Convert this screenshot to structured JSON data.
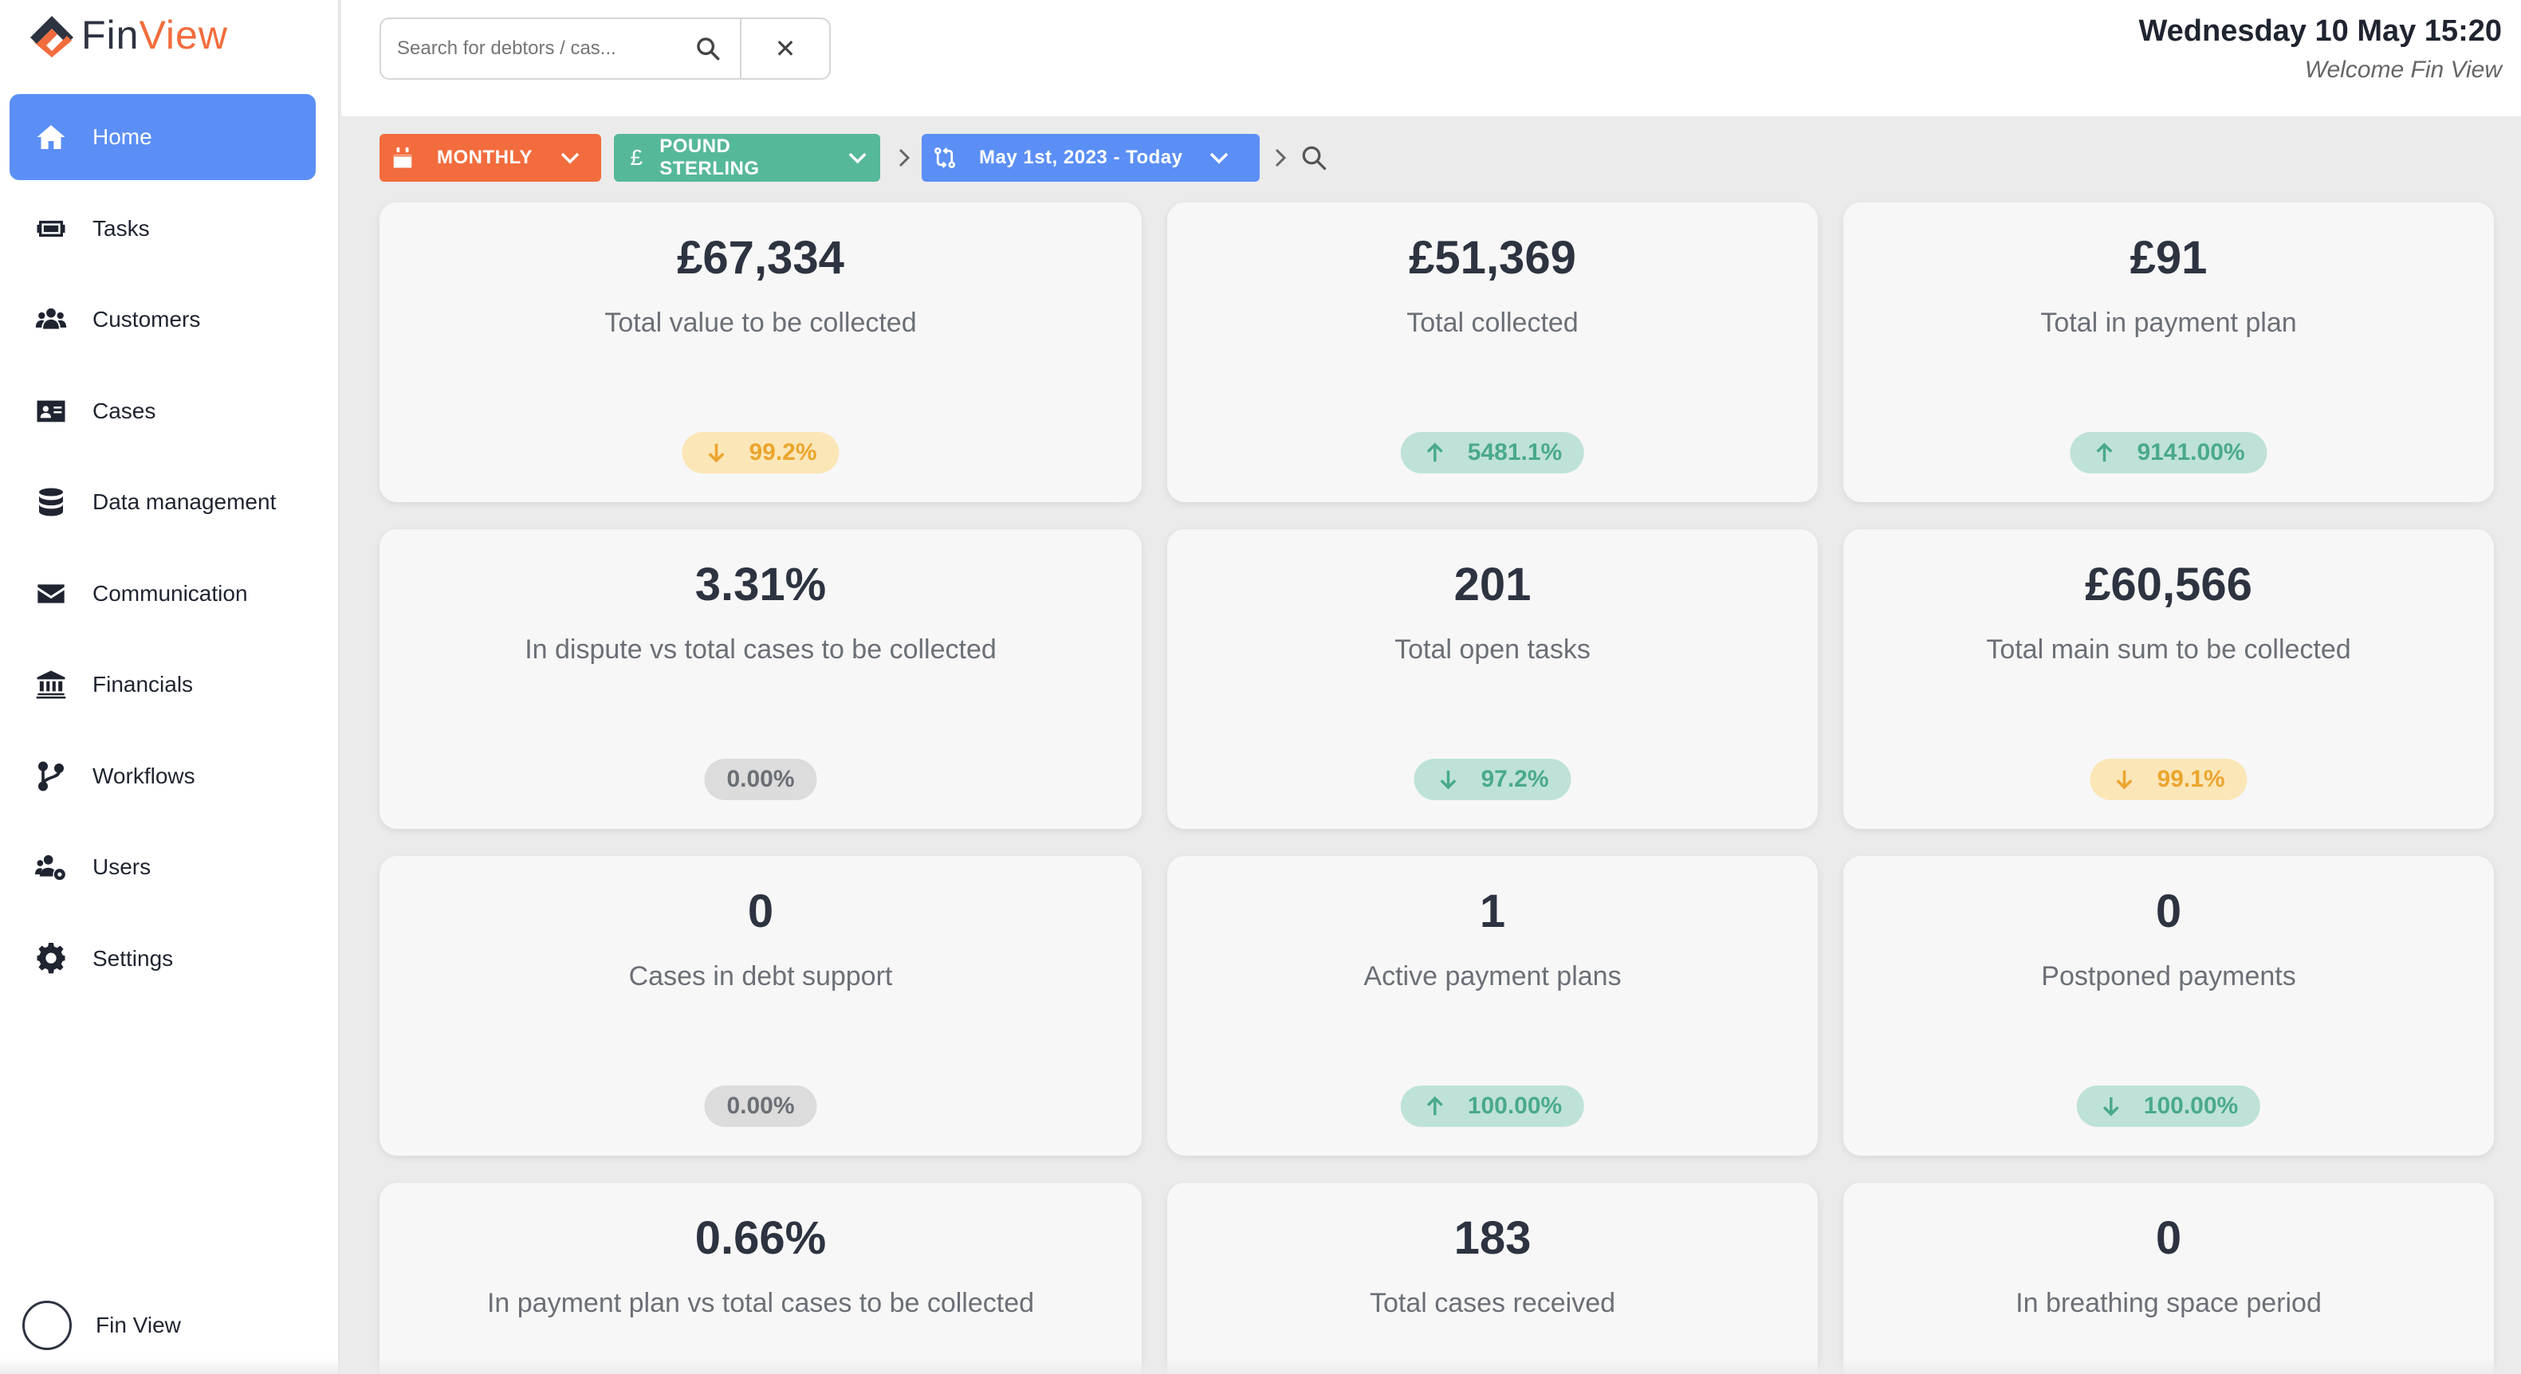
{
  "brand": {
    "name_part1": "Fin",
    "name_part2": "View",
    "accent": "#f26c3d"
  },
  "sidebar": {
    "items": [
      {
        "label": "Home",
        "icon": "home-icon",
        "active": true
      },
      {
        "label": "Tasks",
        "icon": "tasks-icon"
      },
      {
        "label": "Customers",
        "icon": "customers-icon"
      },
      {
        "label": "Cases",
        "icon": "cases-icon"
      },
      {
        "label": "Data management",
        "icon": "database-icon"
      },
      {
        "label": "Communication",
        "icon": "envelope-icon"
      },
      {
        "label": "Financials",
        "icon": "bank-icon"
      },
      {
        "label": "Workflows",
        "icon": "workflow-icon"
      },
      {
        "label": "Users",
        "icon": "users-icon"
      },
      {
        "label": "Settings",
        "icon": "gear-icon"
      }
    ],
    "user": {
      "name": "Fin View"
    }
  },
  "header": {
    "search_placeholder": "Search for debtors / cas...",
    "clear_symbol": "✕",
    "datetime": "Wednesday 10 May 15:20",
    "welcome": "Welcome Fin View"
  },
  "filters": {
    "period": "MONTHLY",
    "currency_symbol": "£",
    "currency": "POUND STERLING",
    "date_range": "May 1st, 2023 - Today"
  },
  "colors": {
    "badge_orange": "#eba52e",
    "badge_green": "#4aa98d",
    "badge_grey": "#6b6f76",
    "active_nav": "#5b8ff5"
  },
  "cards": [
    {
      "value": "£67,334",
      "label": "Total value to be collected",
      "badge": "99.2%",
      "trend": "down",
      "tone": "orange"
    },
    {
      "value": "£51,369",
      "label": "Total collected",
      "badge": "5481.1%",
      "trend": "up",
      "tone": "green"
    },
    {
      "value": "£91",
      "label": "Total in payment plan",
      "badge": "9141.00%",
      "trend": "up",
      "tone": "green"
    },
    {
      "value": "3.31%",
      "label": "In dispute vs total cases to be collected",
      "badge": "0.00%",
      "trend": "none",
      "tone": "grey"
    },
    {
      "value": "201",
      "label": "Total open tasks",
      "badge": "97.2%",
      "trend": "down",
      "tone": "green"
    },
    {
      "value": "£60,566",
      "label": "Total main sum to be collected",
      "badge": "99.1%",
      "trend": "down",
      "tone": "orange"
    },
    {
      "value": "0",
      "label": "Cases in debt support",
      "badge": "0.00%",
      "trend": "none",
      "tone": "grey"
    },
    {
      "value": "1",
      "label": "Active payment plans",
      "badge": "100.00%",
      "trend": "up",
      "tone": "green"
    },
    {
      "value": "0",
      "label": "Postponed payments",
      "badge": "100.00%",
      "trend": "down",
      "tone": "green"
    },
    {
      "value": "0.66%",
      "label": "In payment plan vs total cases to be collected"
    },
    {
      "value": "183",
      "label": "Total cases received"
    },
    {
      "value": "0",
      "label": "In breathing space period"
    }
  ]
}
